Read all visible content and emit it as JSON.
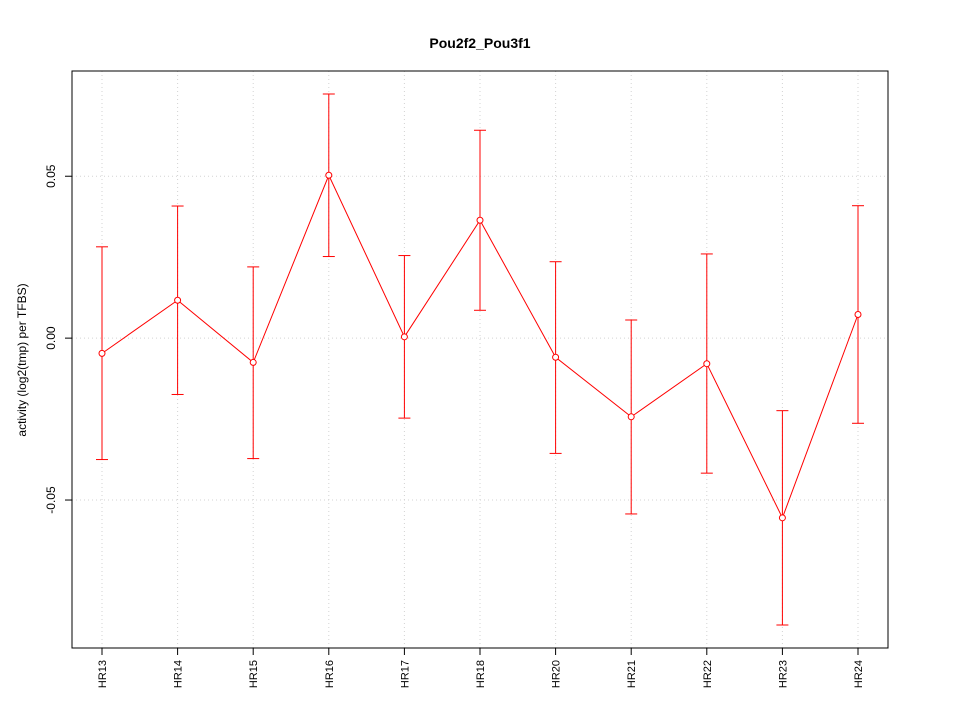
{
  "chart_data": {
    "type": "line",
    "title": "Pou2f2_Pou3f1",
    "xlabel": "",
    "ylabel": "activity (log2(tmp) per TFBS)",
    "categories": [
      "HR13",
      "HR14",
      "HR15",
      "HR16",
      "HR17",
      "HR18",
      "HR20",
      "HR21",
      "HR22",
      "HR23",
      "HR24"
    ],
    "series": [
      {
        "values": [
          -0.0047,
          0.0117,
          -0.0075,
          0.0503,
          0.0004,
          0.0364,
          -0.0059,
          -0.0243,
          -0.0079,
          -0.0555,
          0.0073
        ],
        "lower": [
          -0.0375,
          -0.0174,
          -0.0372,
          0.0252,
          -0.0247,
          0.0086,
          -0.0356,
          -0.0543,
          -0.0417,
          -0.0886,
          -0.0263
        ],
        "upper": [
          0.0282,
          0.0408,
          0.022,
          0.0754,
          0.0255,
          0.0642,
          0.0236,
          0.0056,
          0.026,
          -0.0224,
          0.0409
        ],
        "color": "#ff0000"
      }
    ],
    "yticks": [
      "-0.05",
      "0.00",
      "0.05"
    ],
    "ytick_values": [
      -0.05,
      0.0,
      0.05
    ],
    "ylim": [
      -0.0957,
      0.0825
    ],
    "grid": true,
    "marker": "open-circle",
    "error_bars": true
  }
}
